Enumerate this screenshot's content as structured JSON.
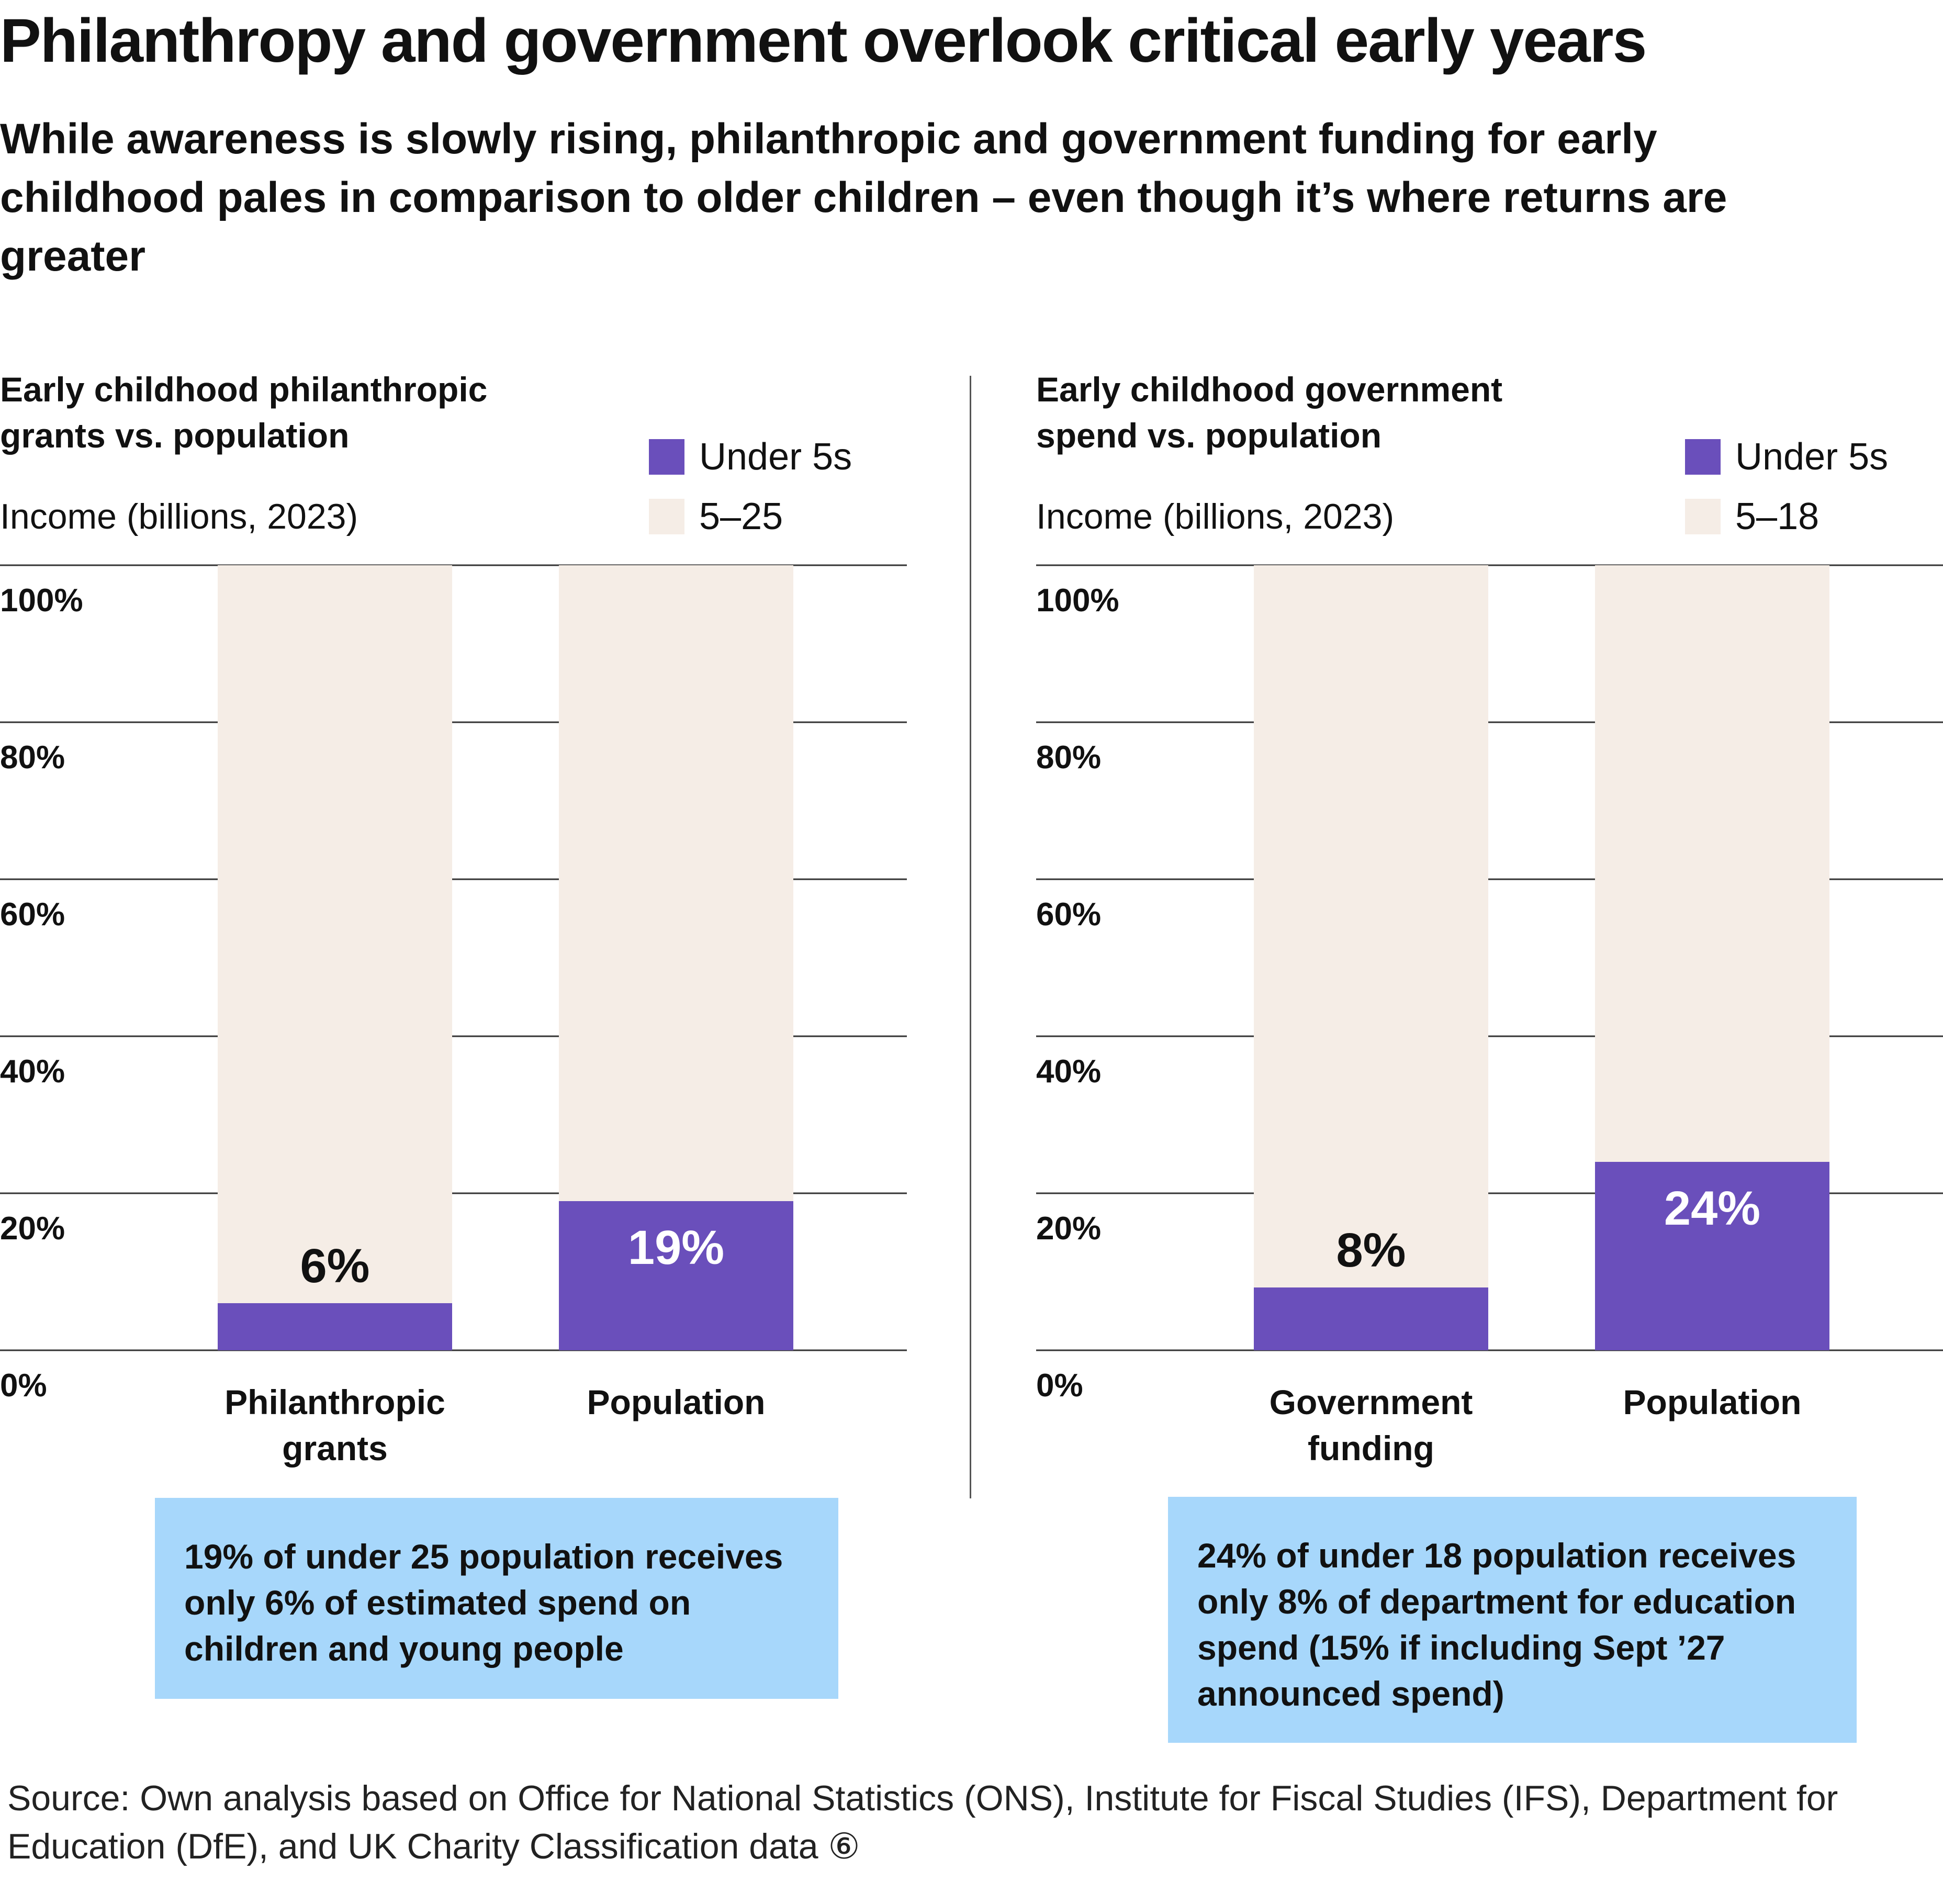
{
  "title": "Philanthropy and government overlook critical early years",
  "subtitle": "While awareness is slowly rising, philanthropic and government funding for early childhood pales in comparison to older children – even though it’s where returns are greater",
  "colors": {
    "under5": "#6a4fbb",
    "older": "#f5ede6",
    "note_bg": "#a7d7fb",
    "gridline": "#333333"
  },
  "chart_data": [
    {
      "type": "bar",
      "stacked": true,
      "title": "Early childhood philanthropic grants vs. population",
      "ylabel": "Income (billions, 2023)",
      "ylim": [
        0,
        100
      ],
      "yticks": [
        "0%",
        "20%",
        "40%",
        "60%",
        "80%",
        "100%"
      ],
      "categories": [
        "Philanthropic grants",
        "Population"
      ],
      "series": [
        {
          "name": "Under 5s",
          "values": [
            6,
            19
          ]
        },
        {
          "name": "5–25",
          "values": [
            94,
            81
          ]
        }
      ],
      "data_labels": [
        "6%",
        "19%"
      ],
      "note": "19% of under 25 population receives only 6% of estimated spend on children and young people"
    },
    {
      "type": "bar",
      "stacked": true,
      "title": "Early childhood government spend vs. population",
      "ylabel": "Income (billions, 2023)",
      "ylim": [
        0,
        100
      ],
      "yticks": [
        "0%",
        "20%",
        "40%",
        "60%",
        "80%",
        "100%"
      ],
      "categories": [
        "Government funding",
        "Population"
      ],
      "series": [
        {
          "name": "Under 5s",
          "values": [
            8,
            24
          ]
        },
        {
          "name": "5–18",
          "values": [
            92,
            76
          ]
        }
      ],
      "data_labels": [
        "8%",
        "24%"
      ],
      "note": "24% of under 18 population receives only 8% of department for education spend (15% if including Sept ’27 announced spend)"
    }
  ],
  "source": "Source: Own analysis based on Office for National Statistics (ONS), Institute for Fiscal Studies (IFS), Department for Education (DfE), and UK Charity Classification data ⑥"
}
